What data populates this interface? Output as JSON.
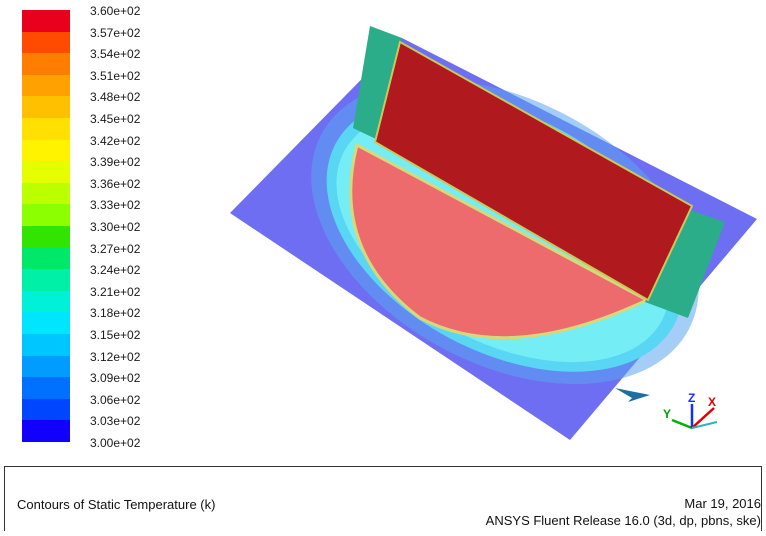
{
  "legend": {
    "ticks": [
      "3.60e+02",
      "3.57e+02",
      "3.54e+02",
      "3.51e+02",
      "3.48e+02",
      "3.45e+02",
      "3.42e+02",
      "3.39e+02",
      "3.36e+02",
      "3.33e+02",
      "3.30e+02",
      "3.27e+02",
      "3.24e+02",
      "3.21e+02",
      "3.18e+02",
      "3.15e+02",
      "3.12e+02",
      "3.09e+02",
      "3.06e+02",
      "3.03e+02",
      "3.00e+02"
    ],
    "colors": [
      "#e8001c",
      "#ff4b00",
      "#ff7d00",
      "#ffa100",
      "#ffc000",
      "#ffe000",
      "#fff300",
      "#e6ff00",
      "#bcff00",
      "#8cff00",
      "#31e500",
      "#00e86a",
      "#00f0a8",
      "#00f0d8",
      "#00e6ff",
      "#00c6ff",
      "#009cff",
      "#0070ff",
      "#0046ff",
      "#1200ff"
    ]
  },
  "axes": {
    "x_label": "X",
    "y_label": "Y",
    "z_label": "Z"
  },
  "footer": {
    "title": "Contours of Static Temperature (k)",
    "date": "Mar 19, 2016",
    "release": "ANSYS Fluent Release 16.0 (3d, dp, pbns, ske)"
  }
}
